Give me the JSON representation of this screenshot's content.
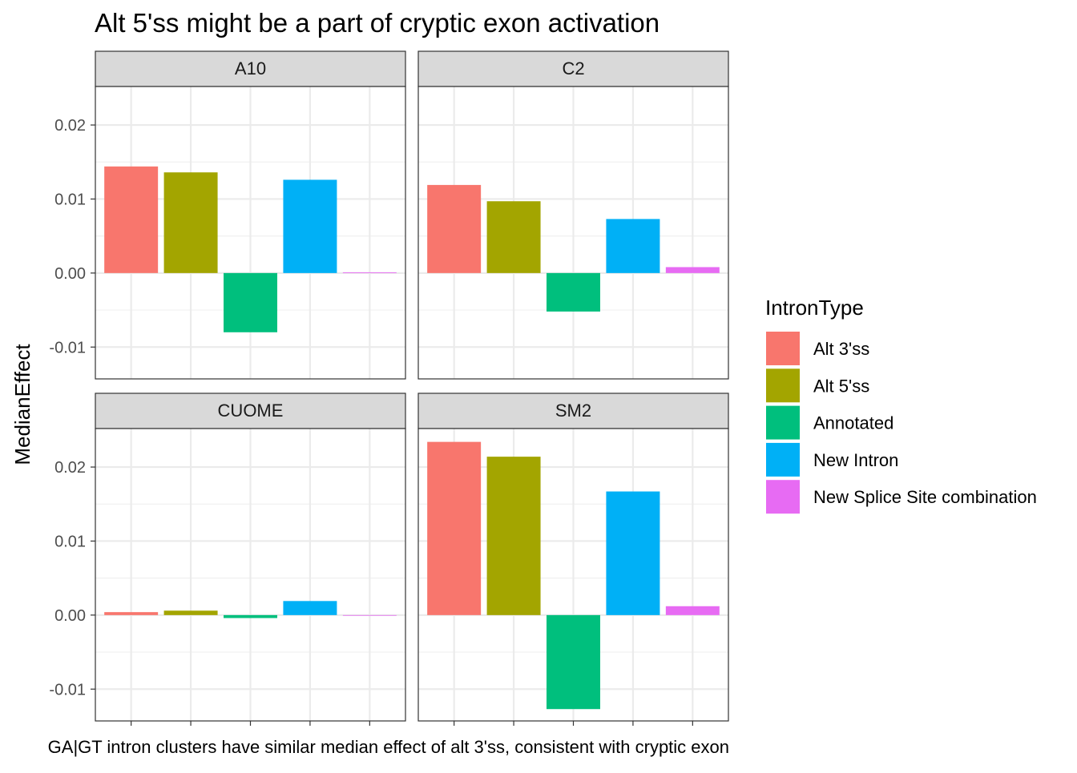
{
  "chart_data": {
    "type": "bar",
    "title": "Alt 5'ss might be a part of cryptic exon activation",
    "caption": "GA|GT intron clusters have similar median effect of alt 3'ss, consistent with cryptic exon",
    "ylabel": "MedianEffect",
    "xlabel": "",
    "ylim": [
      -0.0143,
      0.0252
    ],
    "yticks": [
      -0.01,
      0.0,
      0.01,
      0.02
    ],
    "ytick_labels": [
      "-0.01",
      "0.00",
      "0.01",
      "0.02"
    ],
    "grid": true,
    "legend": {
      "title": "IntronType",
      "placement": "right",
      "entries": [
        {
          "label": "Alt 3'ss",
          "color": "#F8766D"
        },
        {
          "label": "Alt 5'ss",
          "color": "#A3A500"
        },
        {
          "label": "Annotated",
          "color": "#00BF7D"
        },
        {
          "label": "New Intron",
          "color": "#00B0F6"
        },
        {
          "label": "New Splice Site combination",
          "color": "#E76BF3"
        }
      ]
    },
    "categories": [
      "Alt 3'ss",
      "Alt 5'ss",
      "Annotated",
      "New Intron",
      "New Splice Site combination"
    ],
    "panels": [
      {
        "name": "A10",
        "values": [
          0.0144,
          0.0136,
          -0.008,
          0.0126,
          0.0001
        ]
      },
      {
        "name": "C2",
        "values": [
          0.0119,
          0.0097,
          -0.0052,
          0.0073,
          0.0008
        ]
      },
      {
        "name": "CUOME",
        "values": [
          0.0004,
          0.0006,
          -0.0004,
          0.0019,
          0.0
        ]
      },
      {
        "name": "SM2",
        "values": [
          0.0234,
          0.0214,
          -0.0127,
          0.0167,
          0.0012
        ]
      }
    ]
  }
}
